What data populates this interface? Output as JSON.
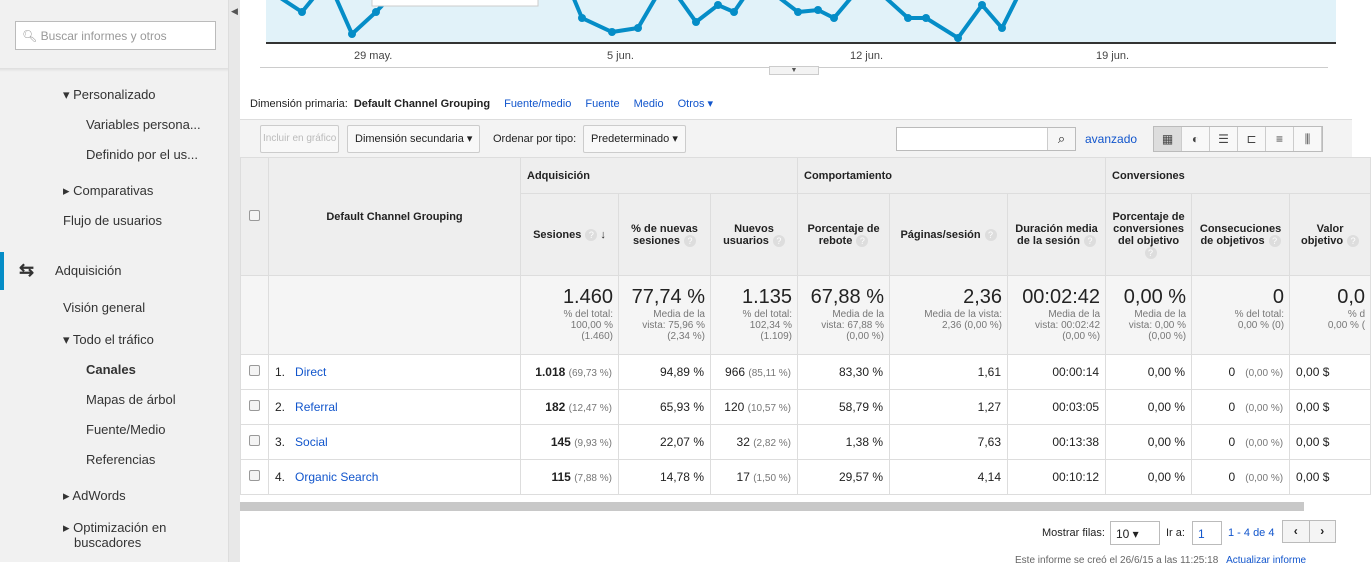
{
  "sidebar": {
    "search_placeholder": "Buscar informes y otros",
    "items": [
      {
        "label": "▾ Personalizado"
      },
      {
        "label": "Variables persona..."
      },
      {
        "label": "Definido por el us..."
      },
      {
        "label": "▸ Comparativas"
      },
      {
        "label": "Flujo de usuarios"
      },
      {
        "label": "Adquisición"
      },
      {
        "label": "Visión general"
      },
      {
        "label": "▾ Todo el tráfico"
      },
      {
        "label": "Canales"
      },
      {
        "label": "Mapas de árbol"
      },
      {
        "label": "Fuente/Medio"
      },
      {
        "label": "Referencias"
      },
      {
        "label": "▸ AdWords"
      },
      {
        "label": "▸ Optimización en"
      },
      {
        "label": "buscadores"
      }
    ]
  },
  "chart": {
    "x_labels": [
      "29 may.",
      "5 jun.",
      "12 jun.",
      "19 jun."
    ],
    "line_color": "#058dc7"
  },
  "dimension": {
    "label": "Dimensión primaria:",
    "current": "Default Channel Grouping",
    "options": [
      "Fuente/medio",
      "Fuente",
      "Medio",
      "Otros ▾"
    ]
  },
  "toolbar": {
    "include": "Incluir en gráfico",
    "secondary": "Dimensión secundaria ▾",
    "sort_label": "Ordenar por tipo:",
    "sort_value": "Predeterminado ▾",
    "advanced": "avanzado"
  },
  "table": {
    "groups": [
      "Adquisición",
      "Comportamiento",
      "Conversiones"
    ],
    "dim_header": "Default Channel Grouping",
    "columns": [
      "Sesiones",
      "% de nuevas sesiones",
      "Nuevos usuarios",
      "Porcentaje de rebote",
      "Páginas/sesión",
      "Duración media de la sesión",
      "Porcentaje de conversiones del objetivo",
      "Consecuciones de objetivos",
      "Valor objetivo"
    ],
    "totals": [
      {
        "big": "1.460",
        "sub": [
          "% del total:",
          "100,00 %",
          "(1.460)"
        ]
      },
      {
        "big": "77,74 %",
        "sub": [
          "Media de la",
          "vista: 75,96 %",
          "(2,34 %)"
        ]
      },
      {
        "big": "1.135",
        "sub": [
          "% del total:",
          "102,34 %",
          "(1.109)"
        ]
      },
      {
        "big": "67,88 %",
        "sub": [
          "Media de la",
          "vista: 67,88 %",
          "(0,00 %)"
        ]
      },
      {
        "big": "2,36",
        "sub": [
          "Media de la vista:",
          "2,36 (0,00 %)",
          ""
        ]
      },
      {
        "big": "00:02:42",
        "sub": [
          "Media de la",
          "vista: 00:02:42",
          "(0,00 %)"
        ]
      },
      {
        "big": "0,00 %",
        "sub": [
          "Media de la",
          "vista: 0,00 %",
          "(0,00 %)"
        ]
      },
      {
        "big": "0",
        "sub": [
          "% del total:",
          "0,00 % (0)",
          ""
        ]
      },
      {
        "big": "0,0",
        "sub": [
          "% d",
          "0,00 % (",
          ""
        ]
      }
    ],
    "rows": [
      {
        "n": "1.",
        "name": "Direct",
        "ses": "1.018",
        "ses_p": "(69,73 %)",
        "new": "94,89 %",
        "nu": "966",
        "nu_p": "(85,11 %)",
        "reb": "83,30 %",
        "pag": "1,61",
        "dur": "00:00:14",
        "conv": "0,00 %",
        "goal": "0",
        "goal_p": "(0,00 %)",
        "val": "0,00 $"
      },
      {
        "n": "2.",
        "name": "Referral",
        "ses": "182",
        "ses_p": "(12,47 %)",
        "new": "65,93 %",
        "nu": "120",
        "nu_p": "(10,57 %)",
        "reb": "58,79 %",
        "pag": "1,27",
        "dur": "00:03:05",
        "conv": "0,00 %",
        "goal": "0",
        "goal_p": "(0,00 %)",
        "val": "0,00 $"
      },
      {
        "n": "3.",
        "name": "Social",
        "ses": "145",
        "ses_p": "(9,93 %)",
        "new": "22,07 %",
        "nu": "32",
        "nu_p": "(2,82 %)",
        "reb": "1,38 %",
        "pag": "7,63",
        "dur": "00:13:38",
        "conv": "0,00 %",
        "goal": "0",
        "goal_p": "(0,00 %)",
        "val": "0,00 $"
      },
      {
        "n": "4.",
        "name": "Organic Search",
        "ses": "115",
        "ses_p": "(7,88 %)",
        "new": "14,78 %",
        "nu": "17",
        "nu_p": "(1,50 %)",
        "reb": "29,57 %",
        "pag": "4,14",
        "dur": "00:10:12",
        "conv": "0,00 %",
        "goal": "0",
        "goal_p": "(0,00 %)",
        "val": "0,00 $"
      }
    ]
  },
  "pager": {
    "show_label": "Mostrar filas:",
    "rows_value": "10 ▾",
    "goto_label": "Ir a:",
    "goto_value": "1",
    "range": "1 - 4 de 4"
  },
  "footer": {
    "text": "Este informe se creó el 26/6/15 a las 11:25:18",
    "refresh": "Actualizar informe"
  }
}
